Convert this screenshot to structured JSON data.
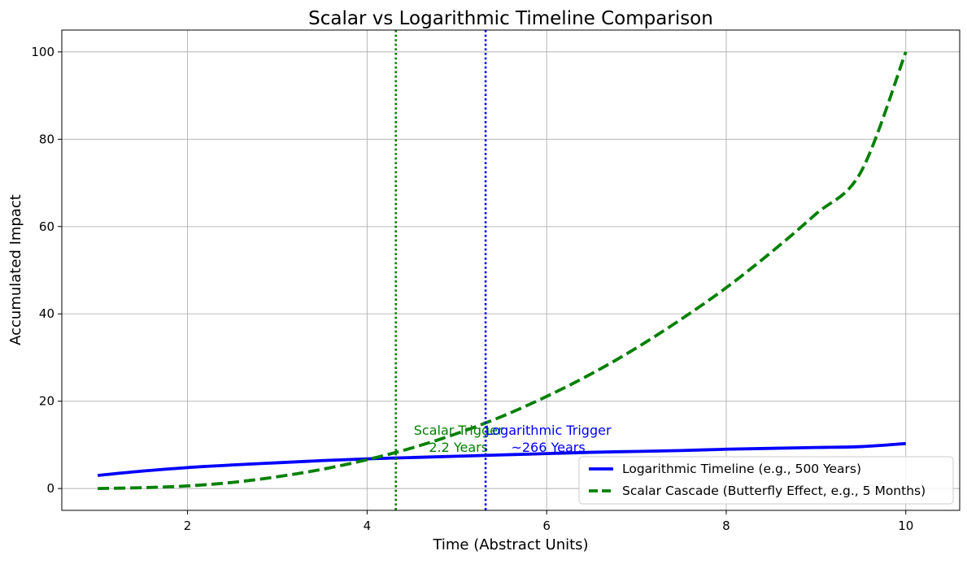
{
  "chart_data": {
    "type": "line",
    "title": "Scalar vs Logarithmic Timeline Comparison",
    "xlabel": "Time (Abstract Units)",
    "ylabel": "Accumulated Impact",
    "xlim": [
      0.6,
      10.6
    ],
    "ylim": [
      -5,
      105
    ],
    "xticks": [
      2,
      4,
      6,
      8,
      10
    ],
    "yticks": [
      0,
      20,
      40,
      60,
      80,
      100
    ],
    "grid": true,
    "legend_position": "lower-right",
    "series": [
      {
        "name": "Logarithmic Timeline (e.g., 500 Years)",
        "color": "#0000ff",
        "style": "solid",
        "x": [
          1,
          1.5,
          2,
          2.5,
          3,
          3.5,
          4,
          4.5,
          5,
          5.5,
          6,
          6.5,
          7,
          7.5,
          8,
          8.5,
          9,
          9.5,
          10
        ],
        "y": [
          3.0,
          4.0,
          4.8,
          5.4,
          5.9,
          6.4,
          6.8,
          7.1,
          7.4,
          7.7,
          8.0,
          8.3,
          8.5,
          8.7,
          9.0,
          9.2,
          9.4,
          9.6,
          10.3
        ]
      },
      {
        "name": "Scalar Cascade (Butterfly Effect, e.g., 5 Months)",
        "color": "#008000",
        "style": "dashed",
        "x": [
          1,
          1.5,
          2,
          2.5,
          3,
          3.5,
          4,
          4.5,
          5,
          5.5,
          6,
          6.5,
          7,
          7.5,
          8,
          8.5,
          9,
          9.5,
          10
        ],
        "y": [
          0.0,
          0.2,
          0.6,
          1.4,
          2.7,
          4.4,
          6.6,
          9.3,
          12.6,
          16.5,
          21.1,
          26.3,
          32.2,
          38.8,
          46.0,
          54.1,
          62.9,
          72.5,
          100.0
        ]
      }
    ],
    "vlines": [
      {
        "x": 4.32,
        "color": "#008000",
        "label_line1": "Scalar Trigger",
        "label_line2": "2.2 Years"
      },
      {
        "x": 5.32,
        "color": "#0000ff",
        "label_line1": "Logarithmic Trigger",
        "label_line2": "~266 Years"
      }
    ]
  }
}
